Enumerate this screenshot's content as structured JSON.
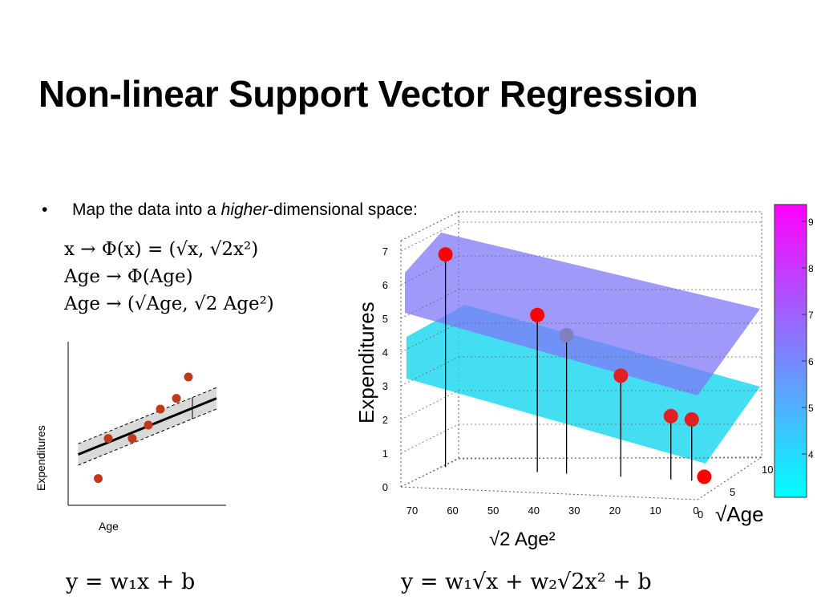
{
  "title": "Non-linear Support Vector Regression",
  "bullet": {
    "marker": "•",
    "text_before": "Map the data into a ",
    "text_emph": "higher",
    "text_after": "-dimensional space:"
  },
  "equations": {
    "map1": "x → Φ(x) = (√x, √2x²)",
    "map2": "Age → Φ(Age)",
    "map3": "Age → (√Age, √2 Age²)",
    "linear_model": "y = w₁x + b",
    "nonlinear_model": "y = w₁√x + w₂√2x² + b"
  },
  "chart_data": [
    {
      "type": "scatter",
      "title": "",
      "xlabel": "Age",
      "ylabel": "Expenditures",
      "points": [
        {
          "x": 1.5,
          "y": 1.0
        },
        {
          "x": 2.0,
          "y": 2.5
        },
        {
          "x": 3.2,
          "y": 2.5
        },
        {
          "x": 4.0,
          "y": 3.0
        },
        {
          "x": 4.6,
          "y": 3.6
        },
        {
          "x": 5.4,
          "y": 4.0
        },
        {
          "x": 6.0,
          "y": 4.8
        }
      ],
      "regression_line": {
        "x": [
          0.5,
          7.4
        ],
        "y": [
          1.9,
          4.0
        ]
      },
      "epsilon_tube": 0.4,
      "colors": {
        "points": "#c0391b",
        "tube": "#d9d9d9",
        "line": "#000000"
      }
    },
    {
      "type": "scatter",
      "subtype": "3d-stem",
      "title": "",
      "xlabel": "√2 Age²",
      "ylabel": "√Age",
      "zlabel": "Expenditures",
      "x_ticks": [
        "70",
        "60",
        "50",
        "40",
        "30",
        "20",
        "10",
        "0"
      ],
      "y_ticks": [
        "0",
        "5",
        "10"
      ],
      "z_ticks": [
        "0",
        "1",
        "2",
        "3",
        "4",
        "5",
        "6",
        "7"
      ],
      "zlim": [
        0,
        7
      ],
      "points": [
        {
          "x": 62,
          "z": 6.9,
          "color": "#ff0000"
        },
        {
          "x": 40,
          "z": 5.1,
          "color": "#ff0000"
        },
        {
          "x": 33,
          "z": 4.5,
          "color": "#8080c0"
        },
        {
          "x": 20,
          "z": 3.3,
          "color": "#e02020"
        },
        {
          "x": 8,
          "z": 2.1,
          "color": "#e02020"
        },
        {
          "x": 3,
          "z": 2.0,
          "color": "#e02020"
        },
        {
          "x": 0,
          "z": 0.3,
          "color": "#ff0000"
        }
      ],
      "colorbar": {
        "ticks": [
          "4",
          "5",
          "6",
          "7",
          "8",
          "9"
        ],
        "min_color": "#00ffff",
        "max_color": "#ff00ff"
      }
    }
  ]
}
